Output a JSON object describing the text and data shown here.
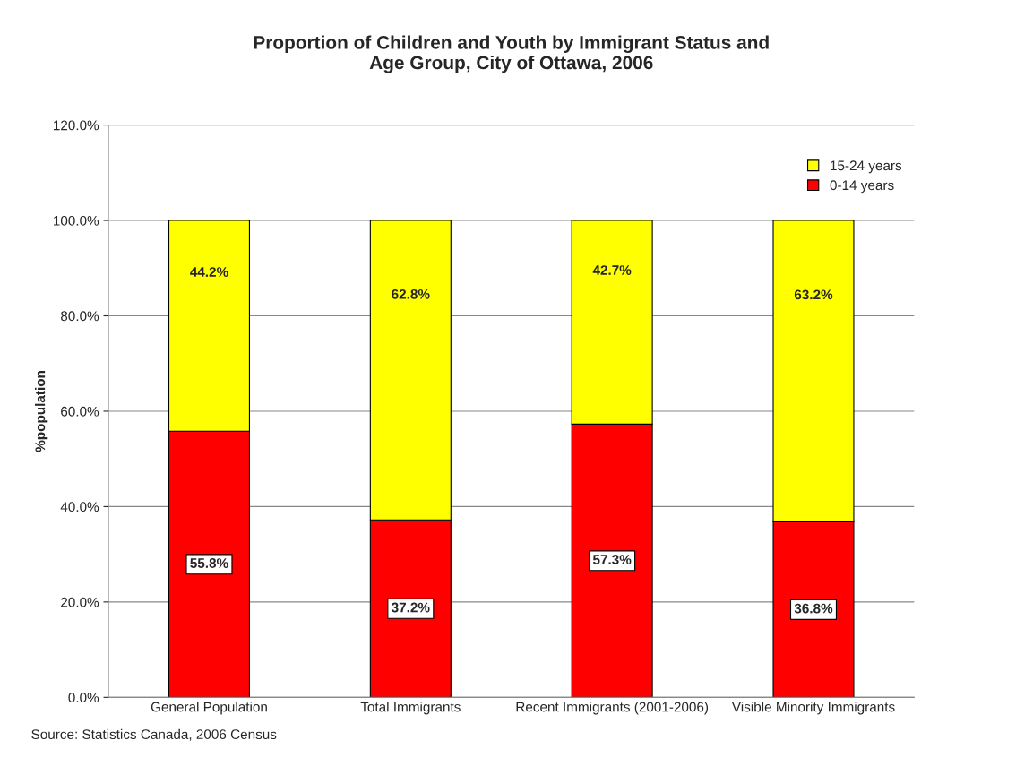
{
  "chart_data": {
    "type": "bar",
    "title": "Proportion of Children and Youth by Immigrant Status and\nAge Group, City of Ottawa, 2006",
    "ylabel": "%population",
    "categories": [
      "General Population",
      "Total Immigrants",
      "Recent Immigrants (2001-2006)",
      "Visible Minority Immigrants"
    ],
    "stacked": true,
    "series": [
      {
        "name": "0-14 years",
        "color": "#ff0000",
        "values": [
          55.8,
          37.2,
          57.3,
          36.8
        ],
        "value_labels": [
          "55.8%",
          "37.2%",
          "57.3%",
          "36.8%"
        ]
      },
      {
        "name": "15-24 years",
        "color": "#ffff00",
        "values": [
          44.2,
          62.8,
          42.7,
          63.2
        ],
        "value_labels": [
          "44.2%",
          "62.8%",
          "42.7%",
          "63.2%"
        ]
      }
    ],
    "ylim": [
      0,
      120
    ],
    "yticks": [
      {
        "value": 0,
        "label": "0.0%"
      },
      {
        "value": 20,
        "label": "20.0%"
      },
      {
        "value": 40,
        "label": "40.0%"
      },
      {
        "value": 60,
        "label": "60.0%"
      },
      {
        "value": 80,
        "label": "80.0%"
      },
      {
        "value": 100,
        "label": "100.0%"
      },
      {
        "value": 120,
        "label": "120.0%"
      }
    ],
    "grid": "y",
    "legend": "top right",
    "annotations": [
      "Source: Statistics Canada, 2006 Census"
    ]
  }
}
